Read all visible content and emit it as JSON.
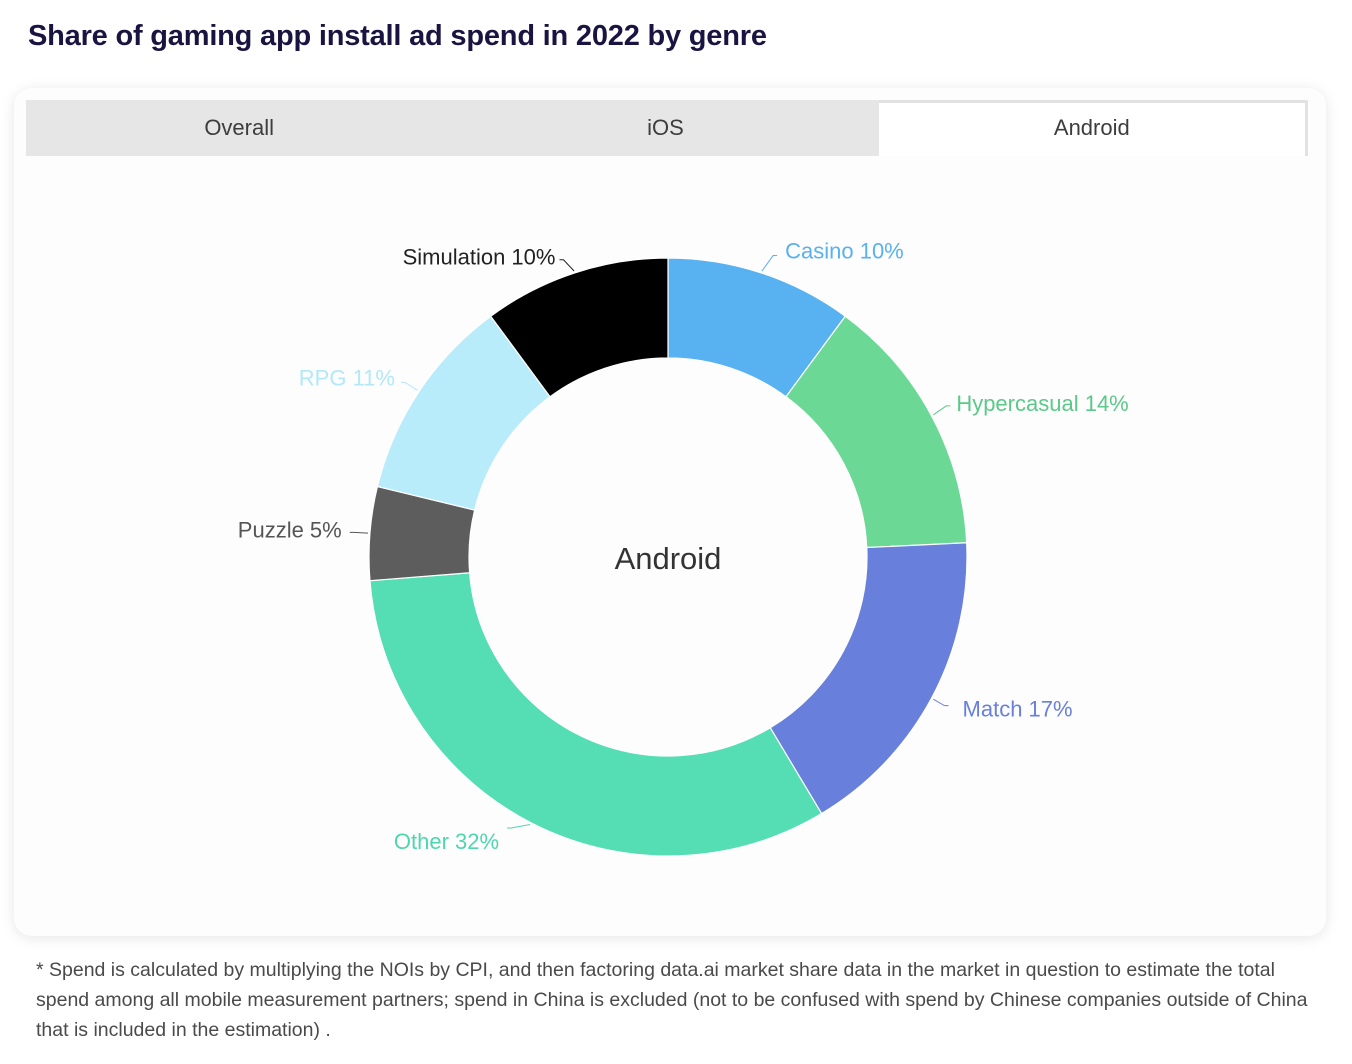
{
  "page": {
    "title": "Share of gaming app install ad spend in 2022 by genre"
  },
  "tabs": [
    {
      "label": "Overall",
      "active": false
    },
    {
      "label": "iOS",
      "active": false
    },
    {
      "label": "Android",
      "active": true
    }
  ],
  "chart_data": {
    "type": "pie",
    "variant": "donut",
    "center_label": "Android",
    "unit": "%",
    "slices": [
      {
        "label": "Casino",
        "value": 10,
        "color": "#58b1f0",
        "label_color": "#58b1f0"
      },
      {
        "label": "Hypercasual",
        "value": 14,
        "color": "#6cd896",
        "label_color": "#5cc988"
      },
      {
        "label": "Match",
        "value": 17,
        "color": "#6880dc",
        "label_color": "#6880dc"
      },
      {
        "label": "Other",
        "value": 32,
        "color": "#55ddb4",
        "label_color": "#4fd6ac"
      },
      {
        "label": "Puzzle",
        "value": 5,
        "color": "#5d5d5d",
        "label_color": "#555555"
      },
      {
        "label": "RPG",
        "value": 11,
        "color": "#b8ecfb",
        "label_color": "#b3e8f8"
      },
      {
        "label": "Simulation",
        "value": 10,
        "color": "#000000",
        "label_color": "#222222"
      }
    ]
  },
  "footnote": "* Spend is calculated by multiplying the NOIs by CPI, and then factoring data.ai market share data in the market in question to estimate the total spend among all mobile measurement partners; spend in China is excluded (not to be confused with spend by Chinese companies outside of China that is included in the estimation) ."
}
